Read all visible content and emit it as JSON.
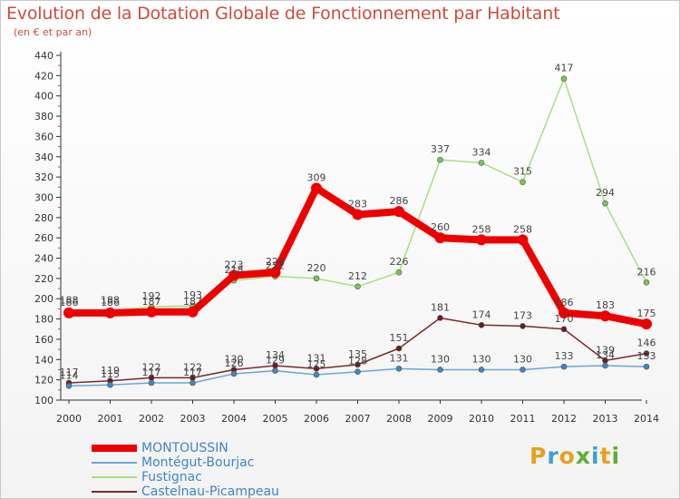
{
  "title": "Evolution de la Dotation Globale de Fonctionnement par Habitant",
  "subtitle": "(en € et par an)",
  "logo": {
    "text": "Proxiti",
    "colors": [
      "#e8a020",
      "#3aa0d8",
      "#e8a020",
      "#5ab030",
      "#3aa0d8",
      "#e8a020",
      "#5ab030"
    ]
  },
  "chart_data": {
    "type": "line",
    "title": "Evolution de la Dotation Globale de Fonctionnement par Habitant",
    "subtitle": "(en € et par an)",
    "x": [
      "2000",
      "2001",
      "2002",
      "2003",
      "2004",
      "2005",
      "2006",
      "2007",
      "2008",
      "2009",
      "2010",
      "2011",
      "2012",
      "2013",
      "2014"
    ],
    "ylim": [
      100,
      440
    ],
    "yticks": [
      100,
      120,
      140,
      160,
      180,
      200,
      220,
      240,
      260,
      280,
      300,
      320,
      340,
      360,
      380,
      400,
      420,
      440
    ],
    "grid": false,
    "legend": "bottom-left",
    "series": [
      {
        "name": "MONTOUSSIN",
        "color": "#ee0000",
        "marker": "#ee0000",
        "values": [
          186,
          186,
          187,
          187,
          223,
          226,
          309,
          283,
          286,
          260,
          258,
          258,
          186,
          183,
          175
        ]
      },
      {
        "name": "Montégut-Bourjac",
        "color": "#6aa6d8",
        "marker": "#3f86c6",
        "values": [
          114,
          115,
          117,
          117,
          126,
          129,
          125,
          128,
          131,
          130,
          130,
          130,
          133,
          134,
          133
        ]
      },
      {
        "name": "Fustignac",
        "color": "#a6e080",
        "marker": "#78c850",
        "values": [
          188,
          188,
          192,
          193,
          218,
          222,
          220,
          212,
          226,
          337,
          334,
          315,
          417,
          294,
          216
        ]
      },
      {
        "name": "Castelnau-Picampeau",
        "color": "#7a2a2a",
        "marker": "#6a1c1c",
        "values": [
          117,
          119,
          122,
          122,
          130,
          134,
          131,
          135,
          151,
          181,
          174,
          173,
          170,
          139,
          146
        ]
      }
    ]
  }
}
